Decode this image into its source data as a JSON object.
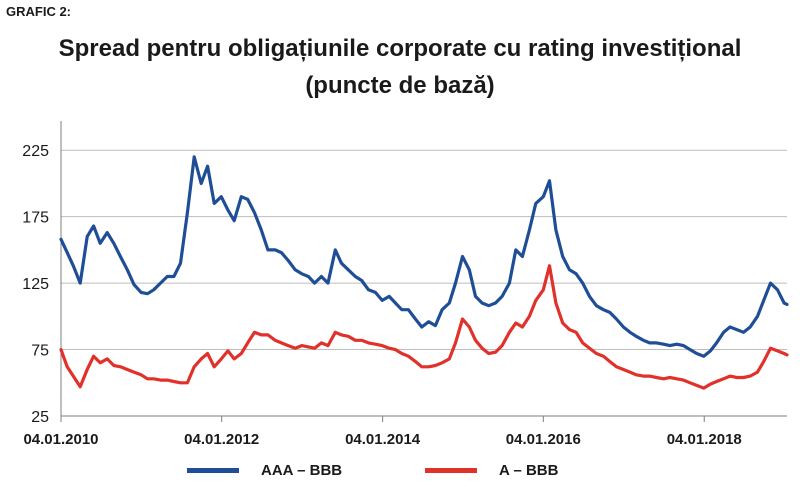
{
  "figure_label": "GRAFIC 2:",
  "title_line1": "Spread pentru obligațiunile corporate cu rating investițional",
  "title_line2": "(puncte de bază)",
  "chart_data": {
    "type": "line",
    "title": "Spread pentru obligațiunile corporate cu rating investițional (puncte de bază)",
    "x_ticks": [
      "04.01.2010",
      "04.01.2012",
      "04.01.2014",
      "04.01.2016",
      "04.01.2018"
    ],
    "x_range": [
      "2010-01-04",
      "2019-01-15"
    ],
    "y_ticks": [
      25,
      75,
      125,
      175,
      225
    ],
    "ylim": [
      25,
      247
    ],
    "grid": "horizontal",
    "legend_position": "bottom",
    "series": [
      {
        "name": "AAA – BBB",
        "color": "#1f4e96",
        "points": [
          [
            "2010-01-04",
            158
          ],
          [
            "2010-02-01",
            148
          ],
          [
            "2010-03-01",
            138
          ],
          [
            "2010-04-01",
            125
          ],
          [
            "2010-05-03",
            160
          ],
          [
            "2010-06-01",
            168
          ],
          [
            "2010-07-01",
            155
          ],
          [
            "2010-08-02",
            163
          ],
          [
            "2010-09-01",
            155
          ],
          [
            "2010-10-01",
            145
          ],
          [
            "2010-11-01",
            135
          ],
          [
            "2010-12-01",
            124
          ],
          [
            "2011-01-03",
            118
          ],
          [
            "2011-02-01",
            117
          ],
          [
            "2011-03-01",
            120
          ],
          [
            "2011-04-01",
            125
          ],
          [
            "2011-05-02",
            130
          ],
          [
            "2011-06-01",
            130
          ],
          [
            "2011-07-01",
            140
          ],
          [
            "2011-08-01",
            178
          ],
          [
            "2011-09-01",
            220
          ],
          [
            "2011-10-03",
            200
          ],
          [
            "2011-11-01",
            213
          ],
          [
            "2011-12-01",
            185
          ],
          [
            "2012-01-02",
            190
          ],
          [
            "2012-02-01",
            180
          ],
          [
            "2012-03-01",
            172
          ],
          [
            "2012-04-02",
            190
          ],
          [
            "2012-05-01",
            188
          ],
          [
            "2012-06-01",
            178
          ],
          [
            "2012-07-02",
            165
          ],
          [
            "2012-08-01",
            150
          ],
          [
            "2012-09-03",
            150
          ],
          [
            "2012-10-01",
            148
          ],
          [
            "2012-11-01",
            142
          ],
          [
            "2012-12-03",
            135
          ],
          [
            "2013-01-02",
            132
          ],
          [
            "2013-02-01",
            130
          ],
          [
            "2013-03-01",
            125
          ],
          [
            "2013-04-01",
            130
          ],
          [
            "2013-05-01",
            125
          ],
          [
            "2013-06-03",
            150
          ],
          [
            "2013-07-01",
            140
          ],
          [
            "2013-08-01",
            135
          ],
          [
            "2013-09-02",
            130
          ],
          [
            "2013-10-01",
            127
          ],
          [
            "2013-11-01",
            120
          ],
          [
            "2013-12-02",
            118
          ],
          [
            "2014-01-02",
            112
          ],
          [
            "2014-02-03",
            115
          ],
          [
            "2014-03-03",
            110
          ],
          [
            "2014-04-01",
            105
          ],
          [
            "2014-05-01",
            105
          ],
          [
            "2014-06-02",
            98
          ],
          [
            "2014-07-01",
            92
          ],
          [
            "2014-08-01",
            96
          ],
          [
            "2014-09-01",
            93
          ],
          [
            "2014-10-01",
            105
          ],
          [
            "2014-11-03",
            110
          ],
          [
            "2014-12-01",
            125
          ],
          [
            "2015-01-02",
            145
          ],
          [
            "2015-02-02",
            135
          ],
          [
            "2015-03-02",
            115
          ],
          [
            "2015-04-01",
            110
          ],
          [
            "2015-05-01",
            108
          ],
          [
            "2015-06-01",
            110
          ],
          [
            "2015-07-01",
            115
          ],
          [
            "2015-08-03",
            125
          ],
          [
            "2015-09-01",
            150
          ],
          [
            "2015-10-01",
            145
          ],
          [
            "2015-11-02",
            165
          ],
          [
            "2015-12-01",
            185
          ],
          [
            "2016-01-04",
            190
          ],
          [
            "2016-02-01",
            202
          ],
          [
            "2016-03-01",
            165
          ],
          [
            "2016-04-01",
            145
          ],
          [
            "2016-05-02",
            135
          ],
          [
            "2016-06-01",
            132
          ],
          [
            "2016-07-01",
            125
          ],
          [
            "2016-08-01",
            115
          ],
          [
            "2016-09-01",
            108
          ],
          [
            "2016-10-03",
            105
          ],
          [
            "2016-11-01",
            103
          ],
          [
            "2016-12-01",
            98
          ],
          [
            "2017-01-02",
            92
          ],
          [
            "2017-02-01",
            88
          ],
          [
            "2017-03-01",
            85
          ],
          [
            "2017-04-03",
            82
          ],
          [
            "2017-05-01",
            80
          ],
          [
            "2017-06-01",
            80
          ],
          [
            "2017-07-03",
            79
          ],
          [
            "2017-08-01",
            78
          ],
          [
            "2017-09-01",
            79
          ],
          [
            "2017-10-02",
            78
          ],
          [
            "2017-11-01",
            75
          ],
          [
            "2017-12-01",
            72
          ],
          [
            "2018-01-02",
            70
          ],
          [
            "2018-02-01",
            74
          ],
          [
            "2018-03-01",
            80
          ],
          [
            "2018-04-02",
            88
          ],
          [
            "2018-05-01",
            92
          ],
          [
            "2018-06-01",
            90
          ],
          [
            "2018-07-02",
            88
          ],
          [
            "2018-08-01",
            92
          ],
          [
            "2018-09-03",
            100
          ],
          [
            "2018-10-01",
            112
          ],
          [
            "2018-11-01",
            125
          ],
          [
            "2018-12-03",
            120
          ],
          [
            "2019-01-02",
            110
          ],
          [
            "2019-01-15",
            109
          ]
        ]
      },
      {
        "name": "A – BBB",
        "color": "#e0312b",
        "points": [
          [
            "2010-01-04",
            75
          ],
          [
            "2010-02-01",
            62
          ],
          [
            "2010-03-01",
            55
          ],
          [
            "2010-04-01",
            47
          ],
          [
            "2010-05-03",
            60
          ],
          [
            "2010-06-01",
            70
          ],
          [
            "2010-07-01",
            65
          ],
          [
            "2010-08-02",
            68
          ],
          [
            "2010-09-01",
            63
          ],
          [
            "2010-10-01",
            62
          ],
          [
            "2010-11-01",
            60
          ],
          [
            "2010-12-01",
            58
          ],
          [
            "2011-01-03",
            56
          ],
          [
            "2011-02-01",
            53
          ],
          [
            "2011-03-01",
            53
          ],
          [
            "2011-04-01",
            52
          ],
          [
            "2011-05-02",
            52
          ],
          [
            "2011-06-01",
            51
          ],
          [
            "2011-07-01",
            50
          ],
          [
            "2011-08-01",
            50
          ],
          [
            "2011-09-01",
            62
          ],
          [
            "2011-10-03",
            68
          ],
          [
            "2011-11-01",
            72
          ],
          [
            "2011-12-01",
            62
          ],
          [
            "2012-01-02",
            68
          ],
          [
            "2012-02-01",
            74
          ],
          [
            "2012-03-01",
            68
          ],
          [
            "2012-04-02",
            72
          ],
          [
            "2012-05-01",
            80
          ],
          [
            "2012-06-01",
            88
          ],
          [
            "2012-07-02",
            86
          ],
          [
            "2012-08-01",
            86
          ],
          [
            "2012-09-03",
            82
          ],
          [
            "2012-10-01",
            80
          ],
          [
            "2012-11-01",
            78
          ],
          [
            "2012-12-03",
            76
          ],
          [
            "2013-01-02",
            78
          ],
          [
            "2013-02-01",
            77
          ],
          [
            "2013-03-01",
            76
          ],
          [
            "2013-04-01",
            80
          ],
          [
            "2013-05-01",
            78
          ],
          [
            "2013-06-03",
            88
          ],
          [
            "2013-07-01",
            86
          ],
          [
            "2013-08-01",
            85
          ],
          [
            "2013-09-02",
            82
          ],
          [
            "2013-10-01",
            82
          ],
          [
            "2013-11-01",
            80
          ],
          [
            "2013-12-02",
            79
          ],
          [
            "2014-01-02",
            78
          ],
          [
            "2014-02-03",
            76
          ],
          [
            "2014-03-03",
            75
          ],
          [
            "2014-04-01",
            72
          ],
          [
            "2014-05-01",
            70
          ],
          [
            "2014-06-02",
            66
          ],
          [
            "2014-07-01",
            62
          ],
          [
            "2014-08-01",
            62
          ],
          [
            "2014-09-01",
            63
          ],
          [
            "2014-10-01",
            65
          ],
          [
            "2014-11-03",
            68
          ],
          [
            "2014-12-01",
            80
          ],
          [
            "2015-01-02",
            98
          ],
          [
            "2015-02-02",
            92
          ],
          [
            "2015-03-02",
            82
          ],
          [
            "2015-04-01",
            76
          ],
          [
            "2015-05-01",
            72
          ],
          [
            "2015-06-01",
            73
          ],
          [
            "2015-07-01",
            78
          ],
          [
            "2015-08-03",
            88
          ],
          [
            "2015-09-01",
            95
          ],
          [
            "2015-10-01",
            92
          ],
          [
            "2015-11-02",
            100
          ],
          [
            "2015-12-01",
            112
          ],
          [
            "2016-01-04",
            120
          ],
          [
            "2016-02-01",
            138
          ],
          [
            "2016-03-01",
            110
          ],
          [
            "2016-04-01",
            95
          ],
          [
            "2016-05-02",
            90
          ],
          [
            "2016-06-01",
            88
          ],
          [
            "2016-07-01",
            80
          ],
          [
            "2016-08-01",
            76
          ],
          [
            "2016-09-01",
            72
          ],
          [
            "2016-10-03",
            70
          ],
          [
            "2016-11-01",
            66
          ],
          [
            "2016-12-01",
            62
          ],
          [
            "2017-01-02",
            60
          ],
          [
            "2017-02-01",
            58
          ],
          [
            "2017-03-01",
            56
          ],
          [
            "2017-04-03",
            55
          ],
          [
            "2017-05-01",
            55
          ],
          [
            "2017-06-01",
            54
          ],
          [
            "2017-07-03",
            53
          ],
          [
            "2017-08-01",
            54
          ],
          [
            "2017-09-01",
            53
          ],
          [
            "2017-10-02",
            52
          ],
          [
            "2017-11-01",
            50
          ],
          [
            "2017-12-01",
            48
          ],
          [
            "2018-01-02",
            46
          ],
          [
            "2018-02-01",
            49
          ],
          [
            "2018-03-01",
            51
          ],
          [
            "2018-04-02",
            53
          ],
          [
            "2018-05-01",
            55
          ],
          [
            "2018-06-01",
            54
          ],
          [
            "2018-07-02",
            54
          ],
          [
            "2018-08-01",
            55
          ],
          [
            "2018-09-03",
            58
          ],
          [
            "2018-10-01",
            66
          ],
          [
            "2018-11-01",
            76
          ],
          [
            "2018-12-03",
            74
          ],
          [
            "2019-01-02",
            72
          ],
          [
            "2019-01-15",
            71
          ]
        ]
      }
    ]
  }
}
